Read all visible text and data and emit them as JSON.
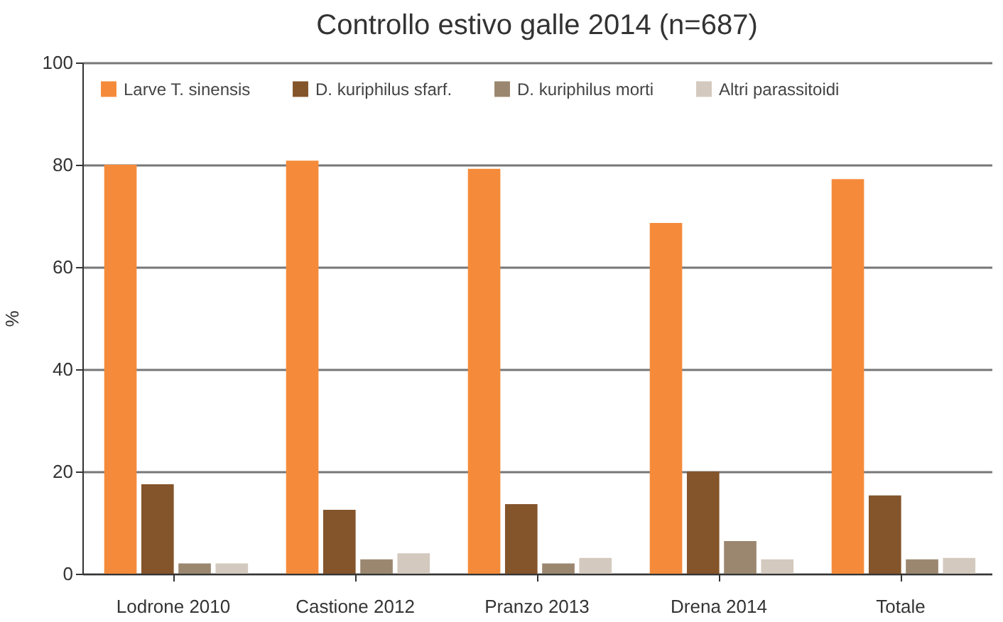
{
  "chart_data": {
    "type": "bar",
    "title": "Controllo estivo galle 2014 (n=687)",
    "ylabel": "%",
    "categories": [
      "Lodrone 2010",
      "Castione 2012",
      "Pranzo 2013",
      "Drena 2014",
      "Totale"
    ],
    "series": [
      {
        "name": "Larve T. sinensis",
        "color": "#f58b3a",
        "values": [
          80.0,
          80.8,
          79.2,
          68.6,
          77.2
        ]
      },
      {
        "name": "D. kuriphilus sfarf.",
        "color": "#84542a",
        "values": [
          17.5,
          12.5,
          13.6,
          20.0,
          15.3
        ]
      },
      {
        "name": "D. kuriphilus morti",
        "color": "#9b8770",
        "values": [
          2.0,
          2.8,
          2.0,
          6.4,
          2.8
        ]
      },
      {
        "name": "Altri parassitoidi",
        "color": "#d4c9be",
        "values": [
          2.0,
          4.0,
          3.1,
          2.8,
          3.1
        ]
      }
    ],
    "ylim": [
      0,
      100
    ],
    "yticks": [
      0,
      20,
      40,
      60,
      80,
      100
    ],
    "grid": "y",
    "legend": "top"
  }
}
